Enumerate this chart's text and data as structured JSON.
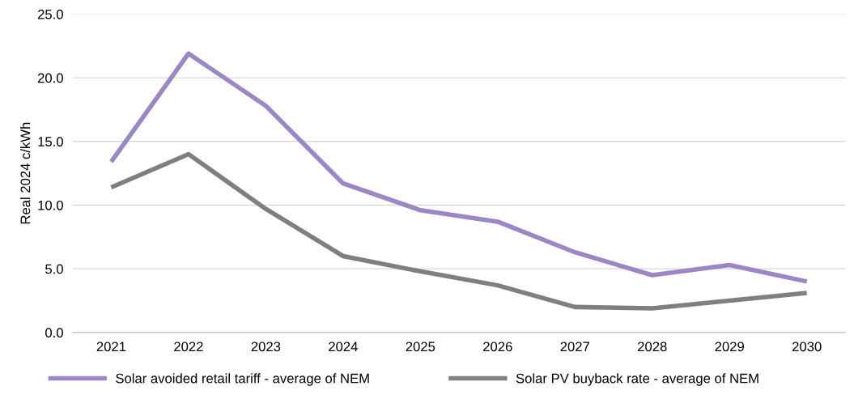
{
  "chart_data": {
    "type": "line",
    "ylabel": "Real 2024 c/kWh",
    "categories": [
      "2021",
      "2022",
      "2023",
      "2024",
      "2025",
      "2026",
      "2027",
      "2028",
      "2029",
      "2030"
    ],
    "series": [
      {
        "name": "Solar avoided retail tariff - average of NEM",
        "color": "#9b87c6",
        "values": [
          13.4,
          21.9,
          17.8,
          11.7,
          9.6,
          8.7,
          6.3,
          4.5,
          5.3,
          4.0
        ]
      },
      {
        "name": "Solar PV buyback rate - average of NEM",
        "color": "#7f7f7f",
        "values": [
          11.4,
          14.0,
          9.7,
          6.0,
          4.8,
          3.7,
          2.0,
          1.9,
          2.5,
          3.1
        ]
      }
    ],
    "ylim": [
      0,
      25
    ],
    "yticks": [
      {
        "value": 0,
        "label": "0.0"
      },
      {
        "value": 5,
        "label": "5.0"
      },
      {
        "value": 10,
        "label": "10.0"
      },
      {
        "value": 15,
        "label": "15.0"
      },
      {
        "value": 20,
        "label": "20.0"
      },
      {
        "value": 25,
        "label": "25.0"
      }
    ],
    "grid": "y",
    "legend": "bottom",
    "marker": "none",
    "line_style": "solid"
  }
}
